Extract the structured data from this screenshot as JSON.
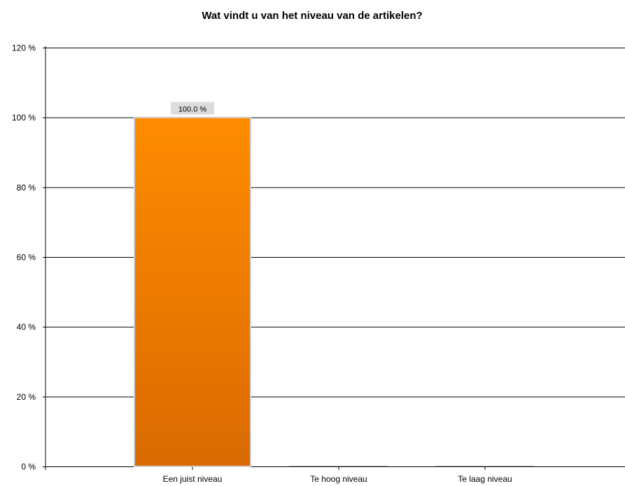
{
  "chart_data": {
    "type": "bar",
    "title": "Wat vindt u van het niveau van de artikelen?",
    "categories": [
      "Een juist niveau",
      "Te hoog niveau",
      "Te laag niveau"
    ],
    "values": [
      100,
      0,
      0
    ],
    "value_unit": "%",
    "data_labels": [
      "100.0 %",
      "",
      ""
    ],
    "y_ticks": [
      0,
      20,
      40,
      60,
      80,
      100,
      120
    ],
    "y_tick_labels": [
      "0 %",
      "20 %",
      "40 %",
      "60 %",
      "80 %",
      "100 %",
      "120 %"
    ],
    "ylim": [
      0,
      120
    ],
    "xlabel": "",
    "ylabel": "",
    "grid": true,
    "legend": "none",
    "colors": {
      "bar_top": "#ff8c00",
      "bar_bottom": "#d96a00",
      "bar_border": "#d0d0d0",
      "label_bg": "#dcdcdc",
      "grid": "#000000"
    }
  }
}
